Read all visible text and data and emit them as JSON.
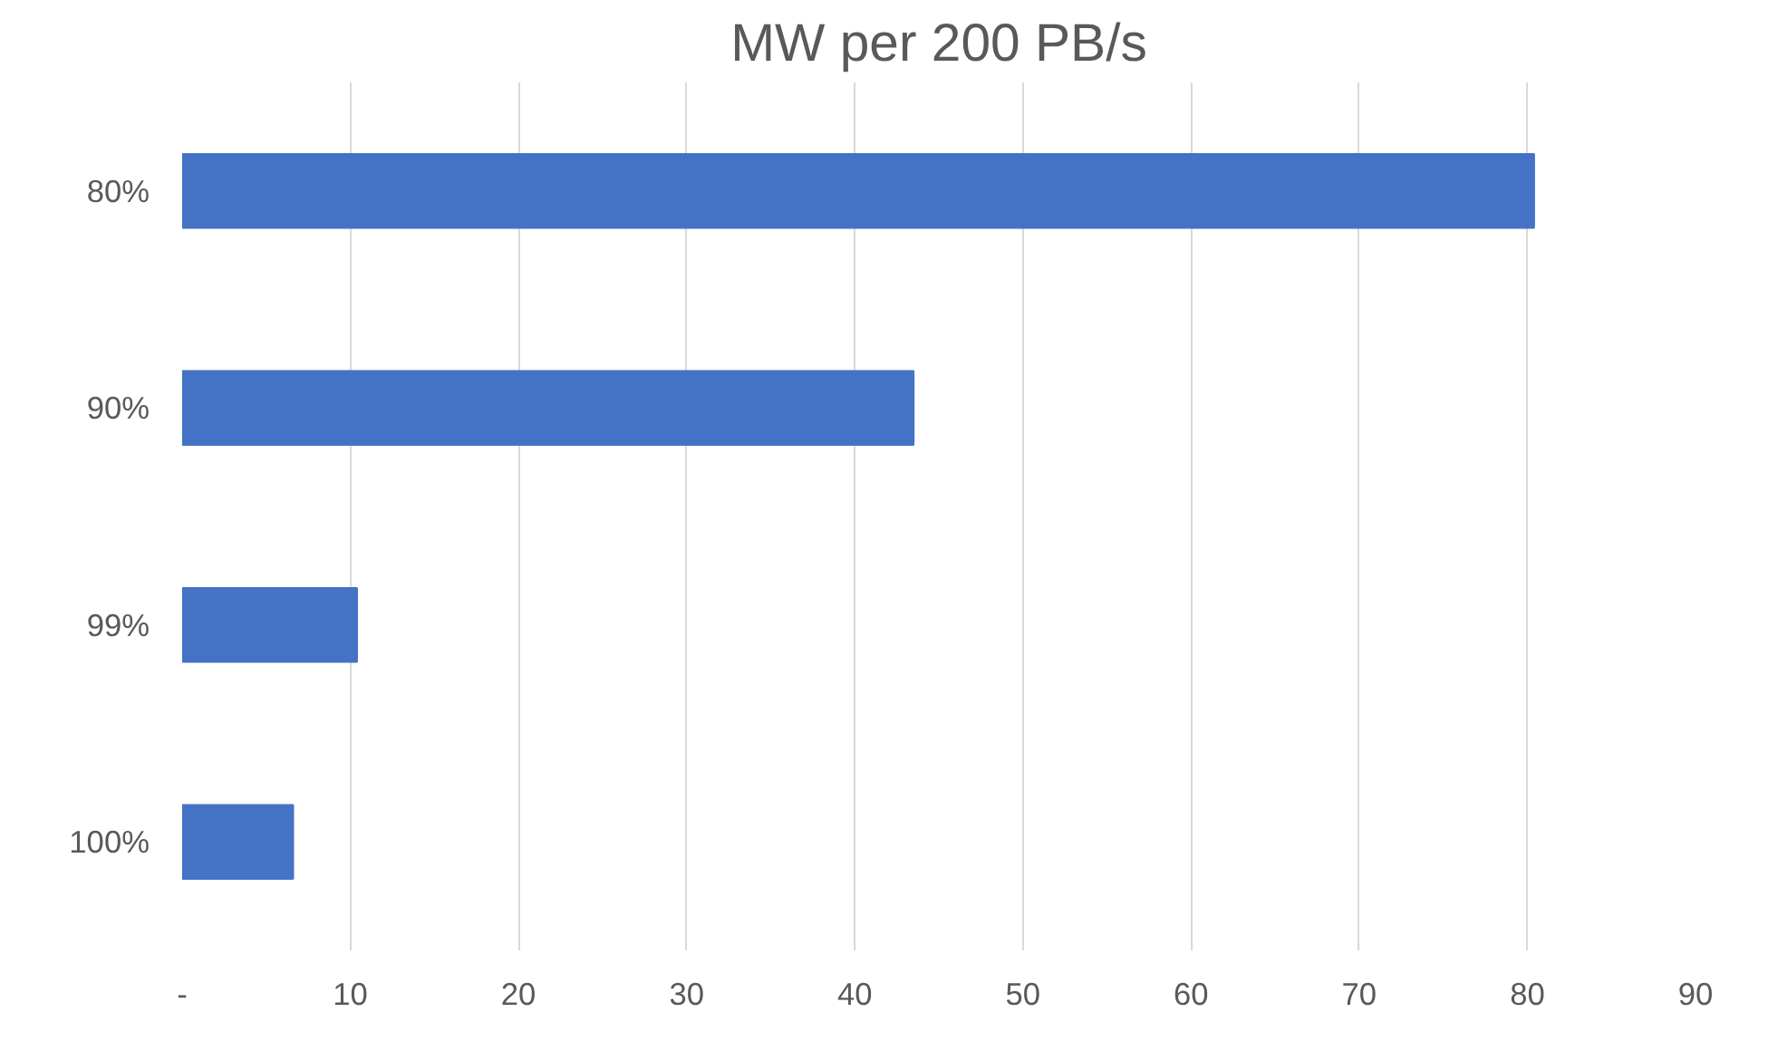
{
  "chart_data": {
    "type": "bar",
    "orientation": "horizontal",
    "title": "MW per 200 PB/s",
    "categories": [
      "80%",
      "90%",
      "99%",
      "100%"
    ],
    "values": [
      80.4,
      43.5,
      10.4,
      6.6
    ],
    "color": "#4472c4",
    "xlim": [
      0,
      90
    ],
    "xticks": [
      {
        "value": 0,
        "label": "-"
      },
      10,
      20,
      30,
      40,
      50,
      60,
      70,
      80,
      90
    ],
    "grid": "x"
  }
}
